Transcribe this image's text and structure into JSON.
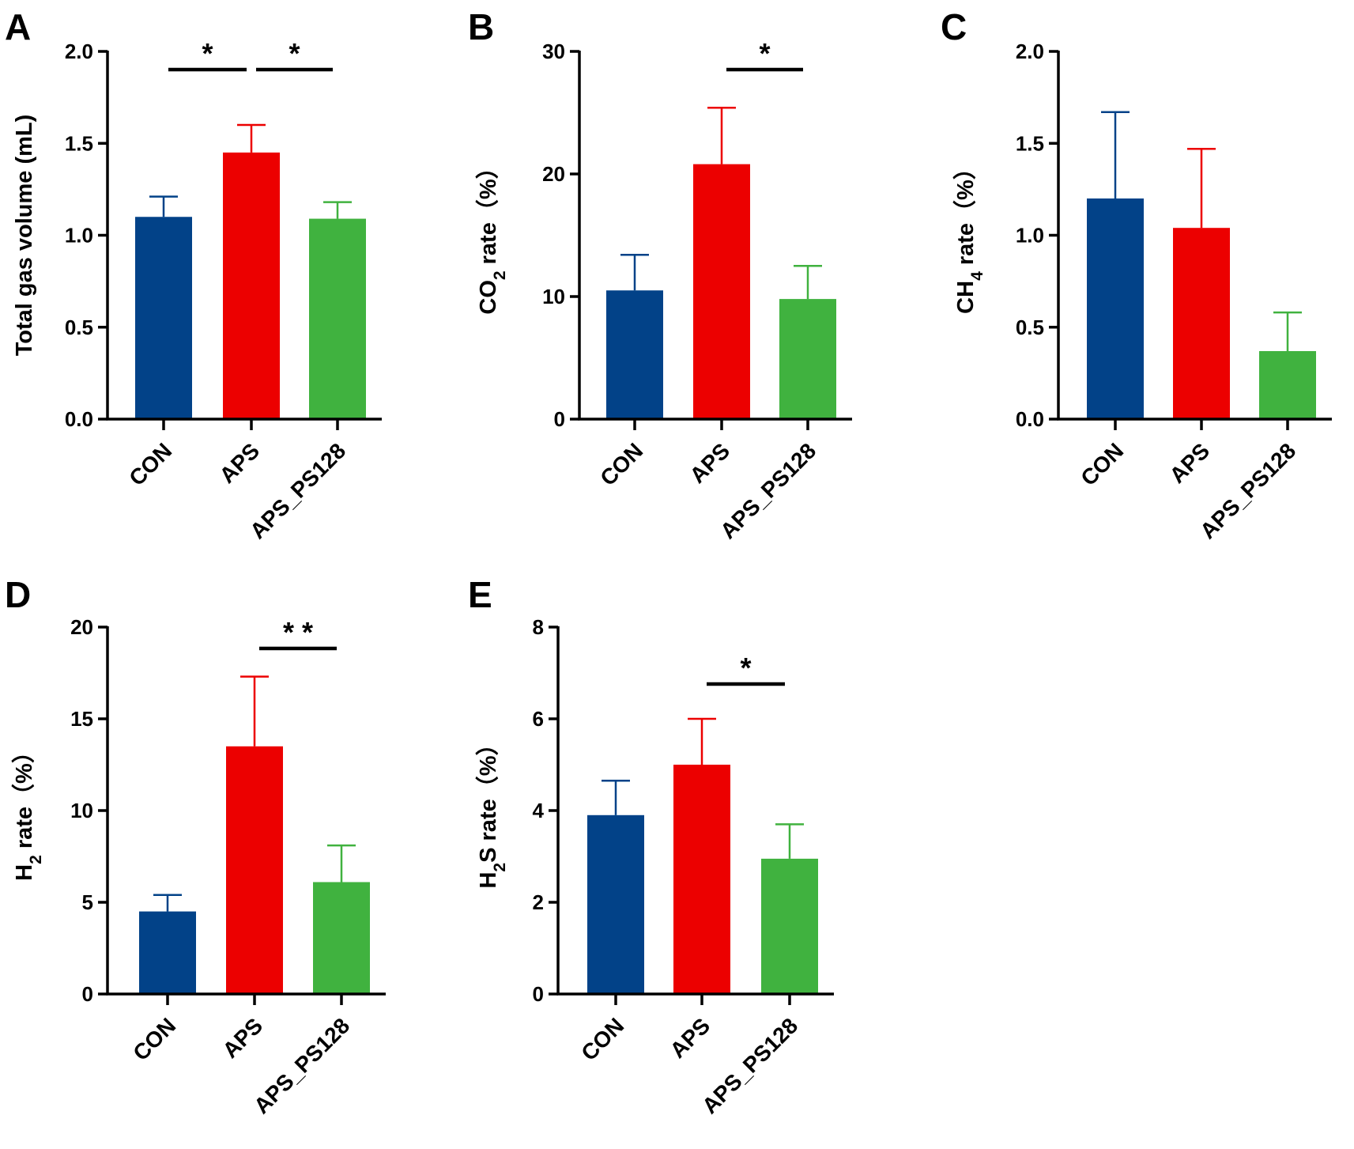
{
  "colors": {
    "CON": "#024288",
    "APS": "#ec0000",
    "APS_PS128": "#40b23f",
    "axis": "#000000"
  },
  "chart_data": [
    {
      "panel": "A",
      "type": "bar",
      "categories": [
        "CON",
        "APS",
        "APS_PS128"
      ],
      "values": [
        1.1,
        1.45,
        1.09
      ],
      "errors": [
        0.11,
        0.15,
        0.09
      ],
      "ylabel": {
        "main": "Total gas volume (mL)"
      },
      "ylim": [
        0,
        2.0
      ],
      "yticks": [
        0,
        0.5,
        1.0,
        1.5,
        2.0
      ],
      "ytick_labels": [
        "0.0",
        "0.5",
        "1.0",
        "1.5",
        "2.0"
      ],
      "significance": [
        {
          "from": "CON",
          "to": "APS",
          "label": "*"
        },
        {
          "from": "APS",
          "to": "APS_PS128",
          "label": "*"
        }
      ]
    },
    {
      "panel": "B",
      "type": "bar",
      "categories": [
        "CON",
        "APS",
        "APS_PS128"
      ],
      "values": [
        10.5,
        20.8,
        9.8
      ],
      "errors": [
        2.9,
        4.6,
        2.7
      ],
      "ylabel": {
        "main": "CO",
        "sub": "2",
        "rest": " rate（%）"
      },
      "ylim": [
        0,
        30
      ],
      "yticks": [
        0,
        10,
        20,
        30
      ],
      "ytick_labels": [
        "0",
        "10",
        "20",
        "30"
      ],
      "significance": [
        {
          "from": "APS",
          "to": "APS_PS128",
          "label": "*"
        }
      ]
    },
    {
      "panel": "C",
      "type": "bar",
      "categories": [
        "CON",
        "APS",
        "APS_PS128"
      ],
      "values": [
        1.2,
        1.04,
        0.37
      ],
      "errors": [
        0.47,
        0.43,
        0.21
      ],
      "ylabel": {
        "main": "CH",
        "sub": "4",
        "rest": " rate（%）"
      },
      "ylim": [
        0,
        2.0
      ],
      "yticks": [
        0,
        0.5,
        1.0,
        1.5,
        2.0
      ],
      "ytick_labels": [
        "0.0",
        "0.5",
        "1.0",
        "1.5",
        "2.0"
      ],
      "significance": []
    },
    {
      "panel": "D",
      "type": "bar",
      "categories": [
        "CON",
        "APS",
        "APS_PS128"
      ],
      "values": [
        4.5,
        13.5,
        6.1
      ],
      "errors": [
        0.9,
        3.8,
        2.0
      ],
      "ylabel": {
        "main": "H",
        "sub": "2",
        "rest": " rate（%）"
      },
      "ylim": [
        0,
        20
      ],
      "yticks": [
        0,
        5,
        10,
        15,
        20
      ],
      "ytick_labels": [
        "0",
        "5",
        "10",
        "15",
        "20"
      ],
      "significance": [
        {
          "from": "APS",
          "to": "APS_PS128",
          "label": "* *"
        }
      ]
    },
    {
      "panel": "E",
      "type": "bar",
      "categories": [
        "CON",
        "APS",
        "APS_PS128"
      ],
      "values": [
        3.9,
        5.0,
        2.95
      ],
      "errors": [
        0.75,
        1.0,
        0.75
      ],
      "ylabel": {
        "main": "H",
        "sub": "2",
        "rest": "S rate（%）"
      },
      "ylim": [
        0,
        8
      ],
      "yticks": [
        0,
        2,
        4,
        6,
        8
      ],
      "ytick_labels": [
        "0",
        "2",
        "4",
        "6",
        "8"
      ],
      "significance": [
        {
          "from": "APS",
          "to": "APS_PS128",
          "label": "*"
        }
      ]
    }
  ]
}
